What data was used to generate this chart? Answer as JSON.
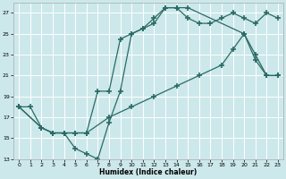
{
  "xlabel": "Humidex (Indice chaleur)",
  "bg_color": "#cce8ea",
  "line_color": "#2a6b65",
  "grid_color": "#ffffff",
  "xlim": [
    -0.5,
    23.5
  ],
  "ylim": [
    13,
    28
  ],
  "xticks": [
    0,
    1,
    2,
    3,
    4,
    5,
    6,
    7,
    8,
    9,
    10,
    11,
    12,
    13,
    14,
    15,
    16,
    17,
    18,
    19,
    20,
    21,
    22,
    23
  ],
  "yticks": [
    13,
    15,
    17,
    19,
    21,
    23,
    25,
    27
  ],
  "line1_x": [
    0,
    1,
    2,
    3,
    4,
    5,
    6,
    7,
    8,
    9,
    10,
    11,
    12,
    13,
    14,
    15,
    20,
    21,
    22,
    23
  ],
  "line1_y": [
    18,
    18,
    16,
    15.5,
    15.5,
    14,
    13.5,
    13,
    16.5,
    19.5,
    25,
    25.5,
    26.5,
    27.5,
    27.5,
    27.5,
    25,
    22.5,
    21,
    21
  ],
  "line2_x": [
    0,
    2,
    3,
    4,
    5,
    6,
    7,
    8,
    9,
    10,
    11,
    12,
    13,
    14,
    15,
    16,
    17,
    18,
    19,
    20,
    21,
    22,
    23
  ],
  "line2_y": [
    18,
    16,
    15.5,
    15.5,
    15.5,
    15.5,
    19.5,
    19.5,
    24.5,
    25,
    25.5,
    26,
    27.5,
    27.5,
    26.5,
    26,
    26,
    26.5,
    27,
    26.5,
    26,
    27,
    26.5
  ],
  "line3_x": [
    0,
    2,
    3,
    4,
    5,
    6,
    8,
    10,
    12,
    14,
    16,
    18,
    19,
    20,
    21,
    22,
    23
  ],
  "line3_y": [
    18,
    16,
    15.5,
    15.5,
    15.5,
    15.5,
    17,
    18,
    19,
    20,
    21,
    22,
    23.5,
    25,
    23,
    21,
    21
  ]
}
